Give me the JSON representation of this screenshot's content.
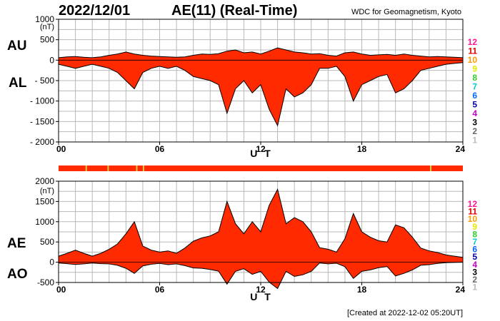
{
  "header": {
    "date": "2022/12/01",
    "title": "AE(11) (Real-Time)",
    "org": "WDC for Geomagnetism, Kyoto"
  },
  "footer": {
    "created": "[Created at 2022-12-02 05:20UT]"
  },
  "chart_data": [
    {
      "type": "area",
      "panel": "AU/AL",
      "side_labels": [
        "AU",
        "AL"
      ],
      "y_unit": "(nT)",
      "ylim": [
        -2000,
        1000
      ],
      "y_ticks": [
        1000,
        500,
        0,
        -500,
        -1000,
        -1500,
        -2000
      ],
      "y_tick_labels": [
        "1000",
        "500",
        "0",
        "- 500",
        "- 1000",
        "- 1500",
        "- 2000"
      ],
      "xlim": [
        0,
        24
      ],
      "x_ticks": [
        0,
        6,
        12,
        18,
        24
      ],
      "x_tick_labels": [
        "00",
        "06",
        "12",
        "18",
        "24"
      ],
      "xlabel": "U T",
      "grid": true,
      "fill_color": "#ff2a00",
      "line_color": "#000000",
      "series": [
        {
          "name": "AU",
          "x": [
            0,
            0.5,
            1,
            1.5,
            2,
            2.5,
            3,
            3.5,
            4,
            4.5,
            5,
            5.5,
            6,
            6.5,
            7,
            7.5,
            8,
            8.5,
            9,
            9.5,
            10,
            10.5,
            11,
            11.5,
            12,
            12.5,
            13,
            13.5,
            14,
            14.5,
            15,
            15.5,
            16,
            16.5,
            17,
            17.5,
            18,
            18.5,
            19,
            19.5,
            20,
            20.5,
            21,
            21.5,
            22,
            22.5,
            23,
            23.5,
            24
          ],
          "values": [
            60,
            80,
            90,
            70,
            60,
            80,
            120,
            150,
            200,
            150,
            120,
            100,
            90,
            80,
            70,
            80,
            120,
            150,
            140,
            160,
            220,
            250,
            180,
            200,
            150,
            220,
            300,
            250,
            200,
            180,
            150,
            160,
            120,
            100,
            180,
            200,
            150,
            120,
            130,
            140,
            120,
            150,
            120,
            100,
            80,
            90,
            80,
            70,
            60
          ]
        },
        {
          "name": "AL",
          "x": [
            0,
            0.5,
            1,
            1.5,
            2,
            2.5,
            3,
            3.5,
            4,
            4.5,
            5,
            5.5,
            6,
            6.5,
            7,
            7.5,
            8,
            8.5,
            9,
            9.5,
            10,
            10.5,
            11,
            11.5,
            12,
            12.5,
            13,
            13.5,
            14,
            14.5,
            15,
            15.5,
            16,
            16.5,
            17,
            17.5,
            18,
            18.5,
            19,
            19.5,
            20,
            20.5,
            21,
            21.5,
            22,
            22.5,
            23,
            23.5,
            24
          ],
          "values": [
            -100,
            -150,
            -200,
            -150,
            -100,
            -150,
            -200,
            -300,
            -500,
            -700,
            -300,
            -200,
            -150,
            -200,
            -150,
            -250,
            -400,
            -450,
            -500,
            -600,
            -1300,
            -700,
            -500,
            -800,
            -600,
            -1200,
            -1600,
            -700,
            -900,
            -800,
            -600,
            -200,
            -200,
            -150,
            -400,
            -1000,
            -600,
            -500,
            -400,
            -350,
            -800,
            -700,
            -500,
            -250,
            -200,
            -150,
            -100,
            -80,
            -60
          ]
        }
      ],
      "legend": {
        "position": "right",
        "labels": [
          "12",
          "11",
          "10",
          "9",
          "8",
          "7",
          "6",
          "5",
          "4",
          "3",
          "2",
          "1"
        ],
        "colors": [
          "#ff1493",
          "#dd0000",
          "#ff9900",
          "#e6e600",
          "#33cc33",
          "#00cccc",
          "#0066ff",
          "#0000aa",
          "#cc00cc",
          "#000000",
          "#666666",
          "#bbbbbb"
        ]
      }
    },
    {
      "type": "bar",
      "panel": "station-count-strip",
      "fill_color": "#ff2a00",
      "xlim": [
        0,
        24
      ],
      "highlight_color": "#cccc44",
      "highlights_x": [
        1.6,
        2.9,
        4.6,
        5.0,
        22.05
      ]
    },
    {
      "type": "area",
      "panel": "AE/AO",
      "side_labels": [
        "AE",
        "AO"
      ],
      "y_unit": "(nT)",
      "ylim": [
        -500,
        2000
      ],
      "y_ticks": [
        2000,
        1500,
        1000,
        500,
        0,
        -500
      ],
      "y_tick_labels": [
        "2000",
        "1500",
        "1000",
        "500",
        "0",
        "-500"
      ],
      "xlim": [
        0,
        24
      ],
      "x_ticks": [
        0,
        6,
        12,
        18,
        24
      ],
      "x_tick_labels": [
        "00",
        "06",
        "12",
        "18",
        "24"
      ],
      "xlabel": "U T",
      "grid": true,
      "fill_color": "#ff2a00",
      "line_color": "#000000",
      "series": [
        {
          "name": "AE",
          "x": [
            0,
            0.5,
            1,
            1.5,
            2,
            2.5,
            3,
            3.5,
            4,
            4.5,
            5,
            5.5,
            6,
            6.5,
            7,
            7.5,
            8,
            8.5,
            9,
            9.5,
            10,
            10.5,
            11,
            11.5,
            12,
            12.5,
            13,
            13.5,
            14,
            14.5,
            15,
            15.5,
            16,
            16.5,
            17,
            17.5,
            18,
            18.5,
            19,
            19.5,
            20,
            20.5,
            21,
            21.5,
            22,
            22.5,
            23,
            23.5,
            24
          ],
          "values": [
            150,
            220,
            300,
            220,
            150,
            220,
            320,
            450,
            700,
            1000,
            400,
            300,
            250,
            280,
            220,
            350,
            520,
            600,
            650,
            750,
            1500,
            950,
            700,
            1000,
            750,
            1400,
            1800,
            950,
            1100,
            1000,
            750,
            360,
            320,
            250,
            580,
            1200,
            750,
            620,
            530,
            500,
            920,
            850,
            620,
            350,
            280,
            240,
            180,
            150,
            120
          ]
        },
        {
          "name": "AO",
          "x": [
            0,
            0.5,
            1,
            1.5,
            2,
            2.5,
            3,
            3.5,
            4,
            4.5,
            5,
            5.5,
            6,
            6.5,
            7,
            7.5,
            8,
            8.5,
            9,
            9.5,
            10,
            10.5,
            11,
            11.5,
            12,
            12.5,
            13,
            13.5,
            14,
            14.5,
            15,
            15.5,
            16,
            16.5,
            17,
            17.5,
            18,
            18.5,
            19,
            19.5,
            20,
            20.5,
            21,
            21.5,
            22,
            22.5,
            23,
            23.5,
            24
          ],
          "values": [
            -20,
            -35,
            -55,
            -40,
            -20,
            -35,
            -40,
            -75,
            -150,
            -275,
            -90,
            -50,
            -30,
            -60,
            -40,
            -85,
            -140,
            -150,
            -180,
            -220,
            -540,
            -225,
            -160,
            -300,
            -225,
            -490,
            -650,
            -225,
            -350,
            -310,
            -225,
            -20,
            -40,
            -25,
            -110,
            -400,
            -225,
            -190,
            -135,
            -105,
            -340,
            -275,
            -190,
            -75,
            -60,
            -30,
            -10,
            -5,
            0
          ]
        }
      ],
      "legend": {
        "position": "right",
        "labels": [
          "12",
          "11",
          "10",
          "9",
          "8",
          "7",
          "6",
          "5",
          "4",
          "3",
          "2",
          "1"
        ],
        "colors": [
          "#ff1493",
          "#dd0000",
          "#ff9900",
          "#e6e600",
          "#33cc33",
          "#00cccc",
          "#0066ff",
          "#0000aa",
          "#cc00cc",
          "#000000",
          "#666666",
          "#bbbbbb"
        ]
      }
    }
  ]
}
